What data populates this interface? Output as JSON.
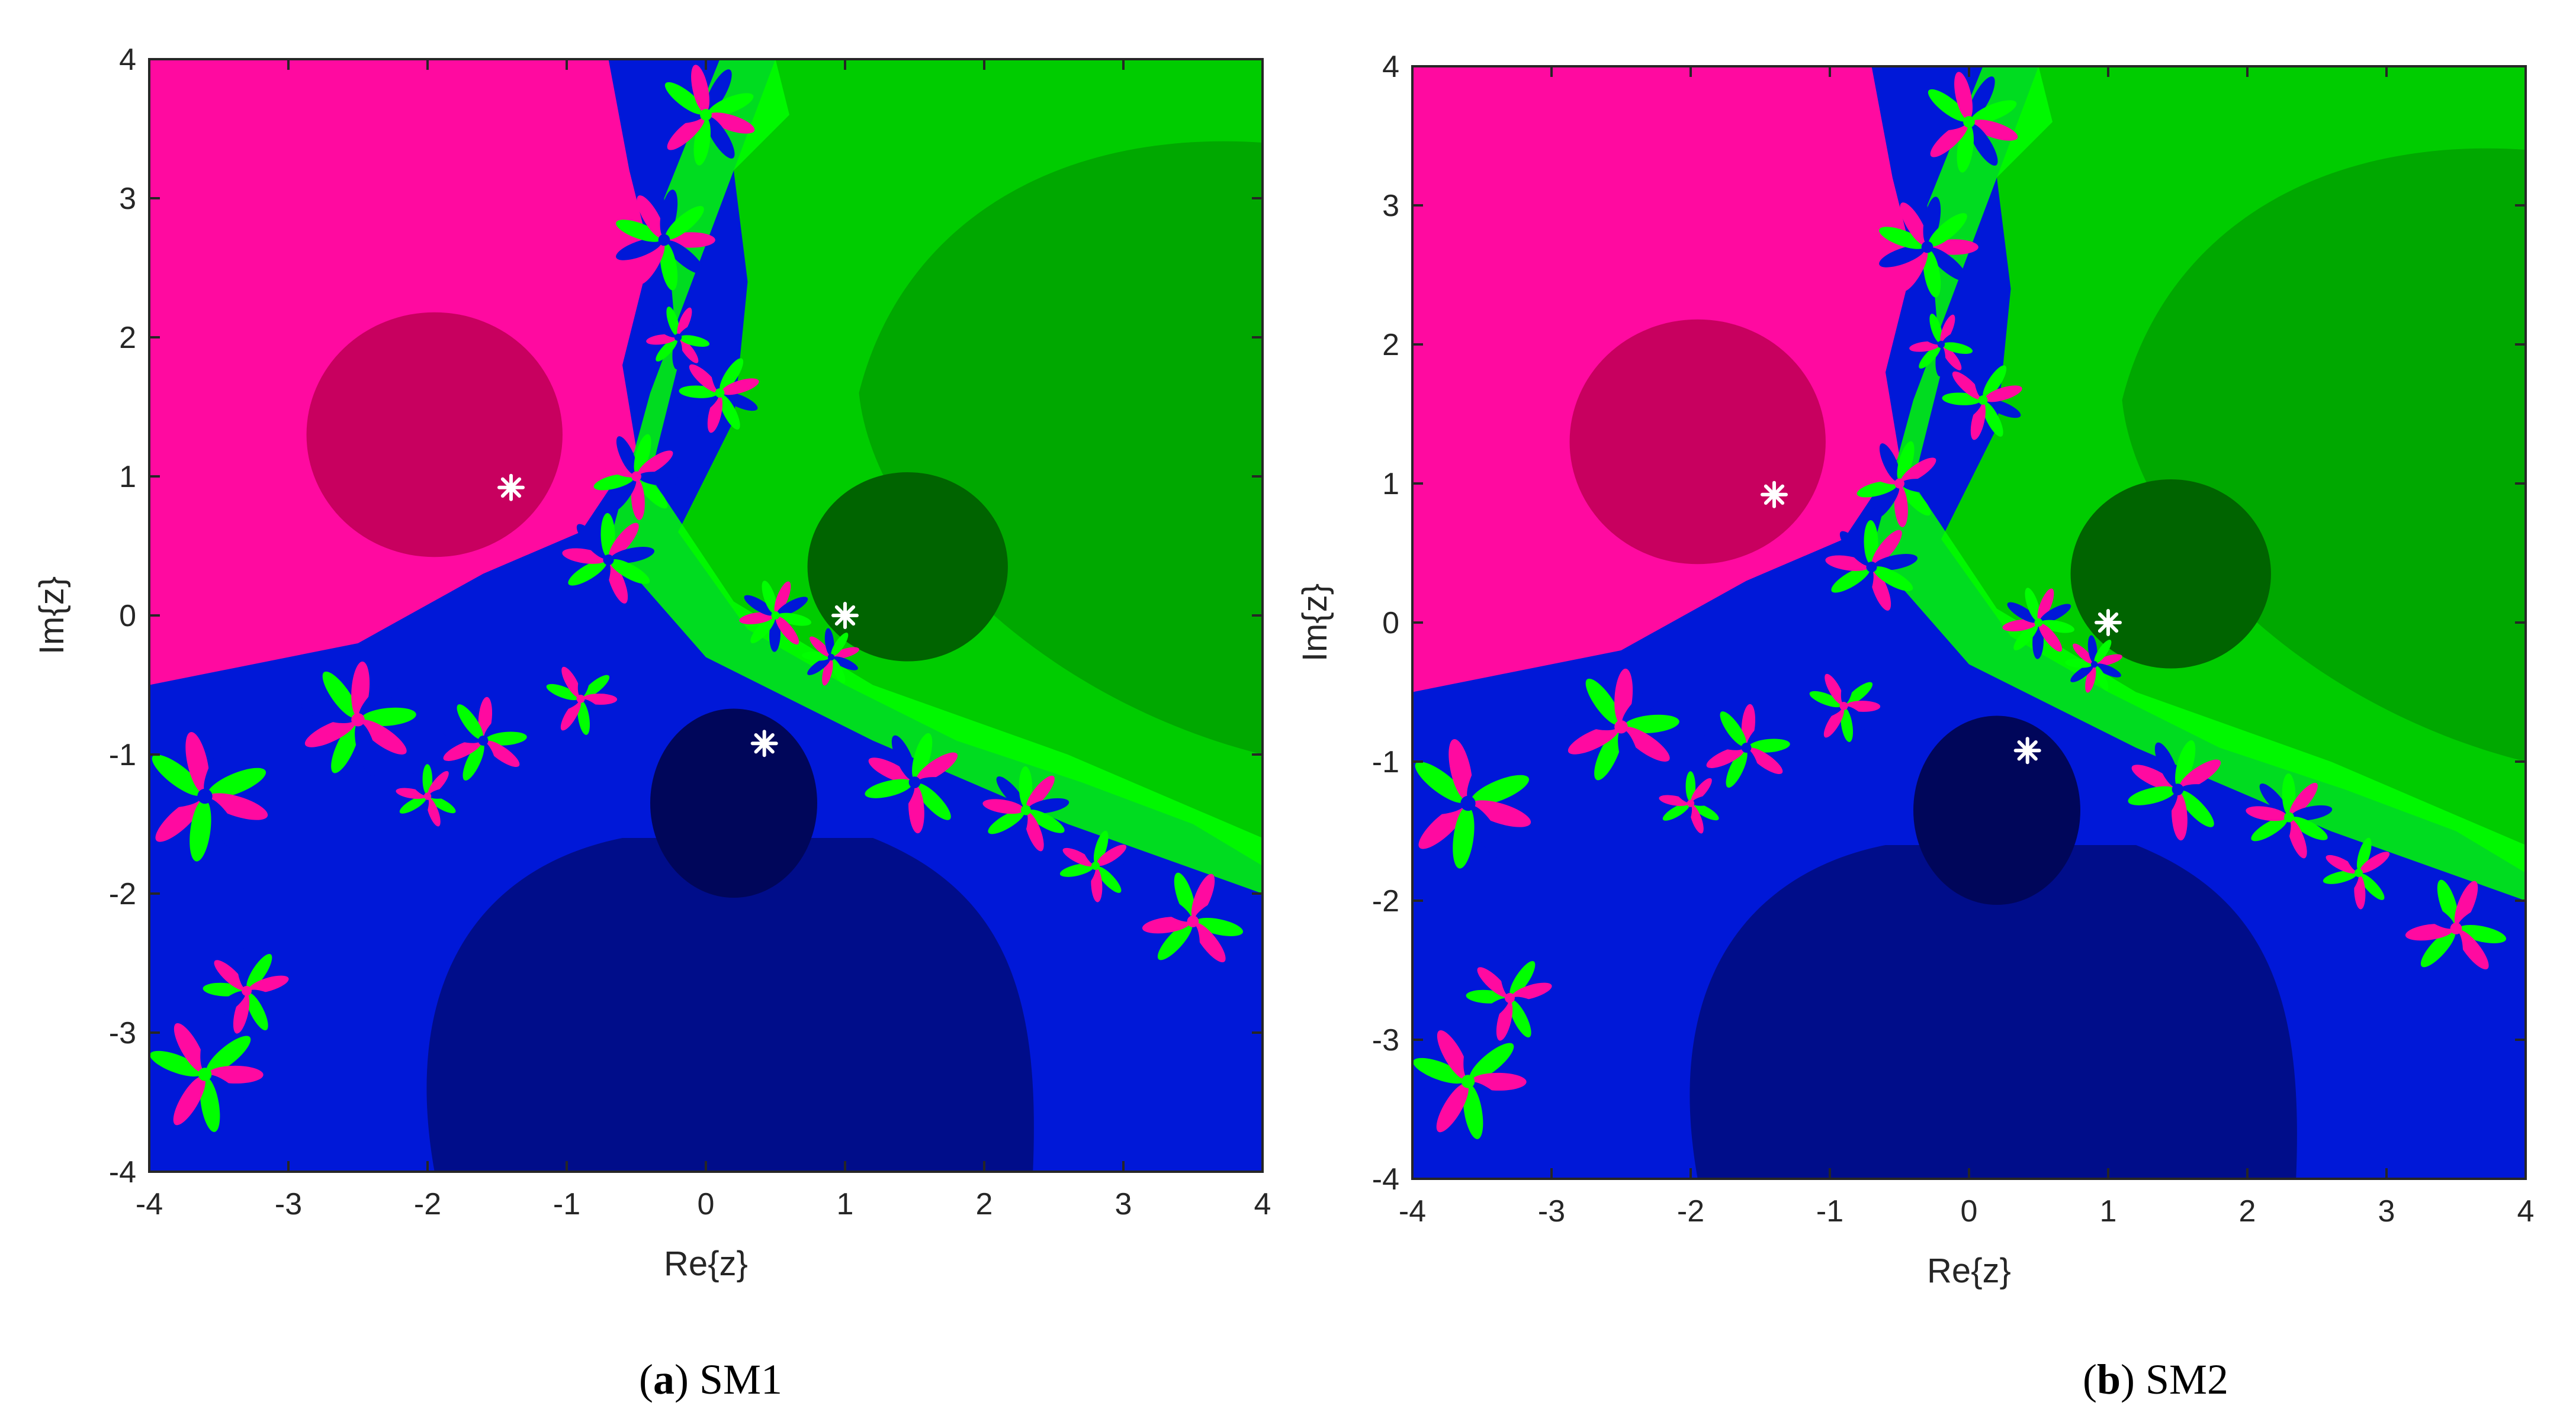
{
  "chart_data": [
    {
      "type": "heatmap",
      "caption_letter": "a",
      "caption_text": "SM1",
      "xlabel": "Re{z}",
      "ylabel": "Im{z}",
      "xlim": [
        -4,
        4
      ],
      "ylim": [
        -4,
        4
      ],
      "xticks": [
        "-4",
        "-3",
        "-2",
        "-1",
        "0",
        "1",
        "2",
        "3",
        "4"
      ],
      "yticks": [
        "-4",
        "-3",
        "-2",
        "-1",
        "0",
        "1",
        "2",
        "3",
        "4"
      ],
      "roots": [
        {
          "x": -1.4,
          "y": 0.92
        },
        {
          "x": 1.0,
          "y": 0.0
        },
        {
          "x": 0.42,
          "y": -0.92
        }
      ],
      "basin_colors": {
        "magenta": "#ff0aa0",
        "magenta_dark": "#c8005f",
        "green": "#00cc00",
        "green_dark": "#006400",
        "light_green": "#00ff00",
        "blue": "#0018d8",
        "blue_dark": "#000d8a",
        "blue_darker": "#00065a"
      }
    },
    {
      "type": "heatmap",
      "caption_letter": "b",
      "caption_text": "SM2",
      "xlabel": "Re{z}",
      "ylabel": "Im{z}",
      "xlim": [
        -4,
        4
      ],
      "ylim": [
        -4,
        4
      ],
      "xticks": [
        "-4",
        "-3",
        "-2",
        "-1",
        "0",
        "1",
        "2",
        "3",
        "4"
      ],
      "yticks": [
        "-4",
        "-3",
        "-2",
        "-1",
        "0",
        "1",
        "2",
        "3",
        "4"
      ],
      "roots": [
        {
          "x": -1.4,
          "y": 0.92
        },
        {
          "x": 1.0,
          "y": 0.0
        },
        {
          "x": 0.42,
          "y": -0.92
        }
      ],
      "basin_colors": {
        "magenta": "#ff0aa0",
        "magenta_dark": "#c8005f",
        "green": "#00cc00",
        "green_dark": "#006400",
        "light_green": "#00ff00",
        "blue": "#0018d8",
        "blue_dark": "#000d8a",
        "blue_darker": "#00065a"
      }
    }
  ]
}
